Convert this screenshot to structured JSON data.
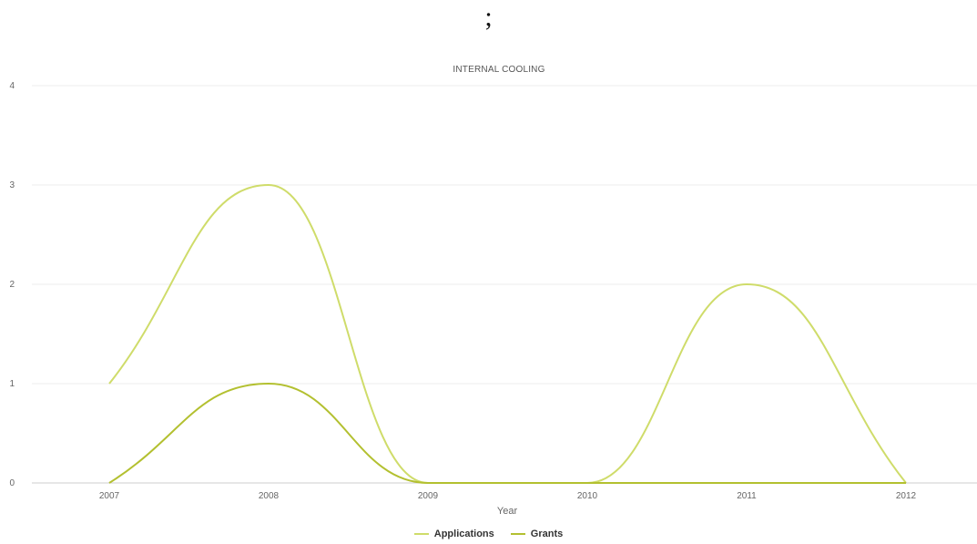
{
  "header": {
    "mark": ";"
  },
  "chart_data": {
    "type": "line",
    "title": "INTERNAL COOLING",
    "xlabel": "Year",
    "ylabel": "",
    "categories": [
      "2007",
      "2008",
      "2009",
      "2010",
      "2011",
      "2012"
    ],
    "ylim": [
      0,
      4
    ],
    "yticks": [
      "0",
      "1",
      "2",
      "3",
      "4"
    ],
    "grid": true,
    "legend": "bottom-center",
    "series": [
      {
        "name": "Applications",
        "values": [
          1,
          3,
          0,
          0,
          2,
          0
        ],
        "color": "#cfdc6a"
      },
      {
        "name": "Grants",
        "values": [
          0,
          1,
          0,
          0,
          0,
          0
        ],
        "color": "#b3c030"
      }
    ]
  }
}
